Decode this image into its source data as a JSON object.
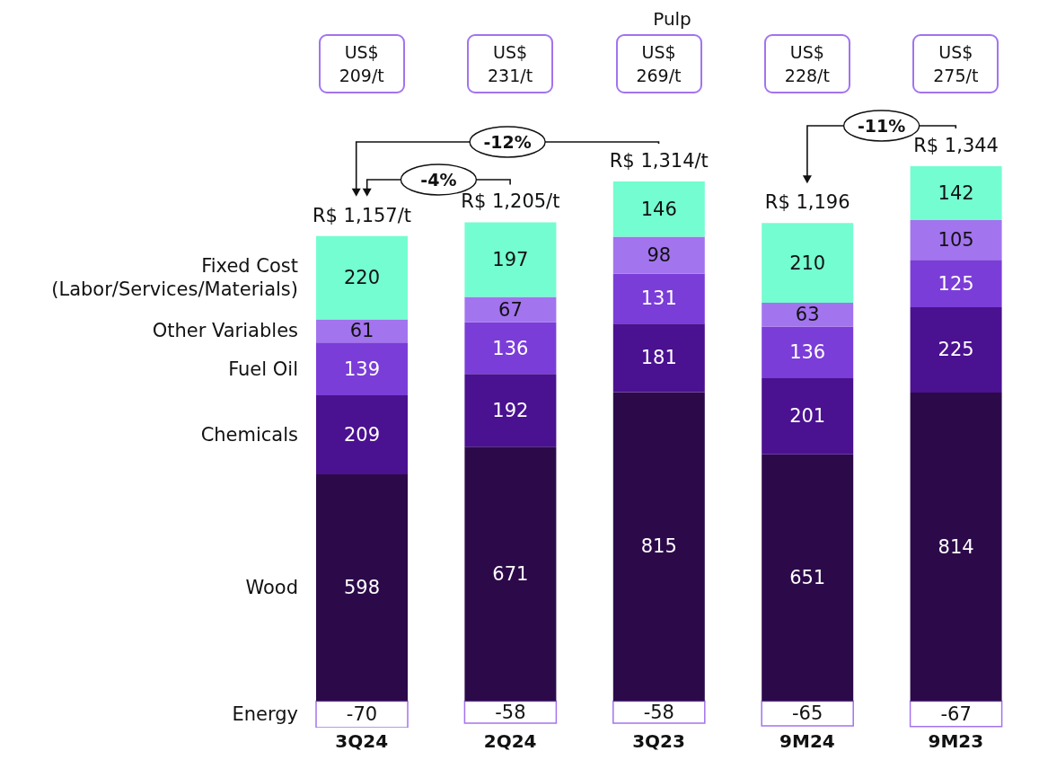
{
  "chart_data": {
    "type": "bar",
    "stacked": true,
    "categories": [
      "3Q24",
      "2Q24",
      "3Q23",
      "9M24",
      "9M23"
    ],
    "series": [
      {
        "name": "Energy",
        "color": "#ffffff",
        "values": [
          -70,
          -58,
          -58,
          -65,
          -67
        ]
      },
      {
        "name": "Wood",
        "color": "#2c0a4a",
        "values": [
          598,
          671,
          815,
          651,
          814
        ]
      },
      {
        "name": "Chemicals",
        "color": "#4a1190",
        "values": [
          209,
          192,
          181,
          201,
          225
        ]
      },
      {
        "name": "Fuel Oil",
        "color": "#7b3dd8",
        "values": [
          139,
          136,
          131,
          136,
          125
        ]
      },
      {
        "name": "Other Variables",
        "color": "#a274ee",
        "values": [
          61,
          67,
          98,
          63,
          105
        ]
      },
      {
        "name": "Fixed Cost (Labor/Services/Materials)",
        "color": "#74fdd0",
        "values": [
          220,
          197,
          146,
          210,
          142
        ]
      }
    ],
    "data_labels": true,
    "totals": [
      "R$ 1,157/t",
      "R$ 1,205/t",
      "R$ 1,314/t",
      "R$ 1,196",
      "R$ 1,344"
    ],
    "tick_labels": "x",
    "annotations": [
      "Pulp",
      "US$ 209/t",
      "US$ 231/t",
      "US$ 269/t",
      "US$ 228/t",
      "US$ 275/t",
      "-12%",
      "-4%",
      "-11%"
    ]
  }
}
